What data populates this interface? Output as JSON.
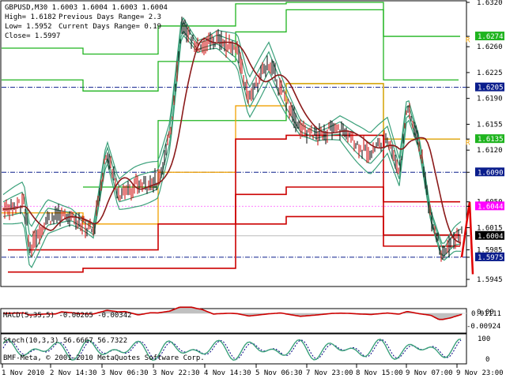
{
  "header": {
    "symbol_line": "GBPUSD,M30  1.6003 1.6004 1.6003 1.6004",
    "high_line": "High= 1.6182",
    "prev_range_line": "Previous Days Range= 2.3",
    "low_line": "Low= 1.5952",
    "curr_range_line": "Current Days Range= 0.19",
    "close_line": "Close= 1.5997"
  },
  "price_axis": {
    "labels": [
      "1.6320",
      "1.6274",
      "1.6260",
      "1.6225",
      "1.6205",
      "1.6190",
      "1.6155",
      "1.6135",
      "1.6120",
      "1.6090",
      "1.6050",
      "1.6044",
      "1.6015",
      "1.6004",
      "1.5985",
      "1.5975",
      "1.5945"
    ],
    "highlighted": [
      {
        "value": "1.6274",
        "bg": "#1fb41f"
      },
      {
        "value": "1.6205",
        "bg": "#0a1d8c"
      },
      {
        "value": "1.6135",
        "bg": "#1fb41f"
      },
      {
        "value": "1.6090",
        "bg": "#0a1d8c"
      },
      {
        "value": "1.6044",
        "bg": "#ff00ff"
      },
      {
        "value": "1.6004",
        "bg": "#000000"
      },
      {
        "value": "1.5975",
        "bg": "#0a1d8c"
      }
    ],
    "r_markers": [
      "R",
      "R"
    ]
  },
  "macd": {
    "label": "MACD(5,35,5) -0.00265 -0.00342",
    "axis": [
      "0.01111",
      "0.00",
      "-0.00924"
    ]
  },
  "stoch": {
    "label": "Stoch(10,3,3) 56.6667 56.7322",
    "axis": [
      "100",
      "0"
    ]
  },
  "copyright": "BMF-Meta, © 2001-2010 MetaQuotes Software Corp.",
  "time_axis": [
    "1 Nov 2010",
    "2 Nov 14:30",
    "3 Nov 06:30",
    "3 Nov 22:30",
    "4 Nov 14:30",
    "5 Nov 06:30",
    "7 Nov 23:00",
    "8 Nov 15:00",
    "9 Nov 07:00",
    "9 Nov 23:00"
  ],
  "colors": {
    "green_lines": "#1fb41f",
    "red_lines": "#cc0000",
    "orange_lines": "#f0a000",
    "bands": "#3aa07a",
    "ma": "#8b1a1a",
    "candles": "#000000",
    "macd_hist": "#c0c0c0",
    "macd_signal": "#cc0000",
    "stoch_main": "#3aa07a",
    "stoch_signal": "#000080"
  }
}
